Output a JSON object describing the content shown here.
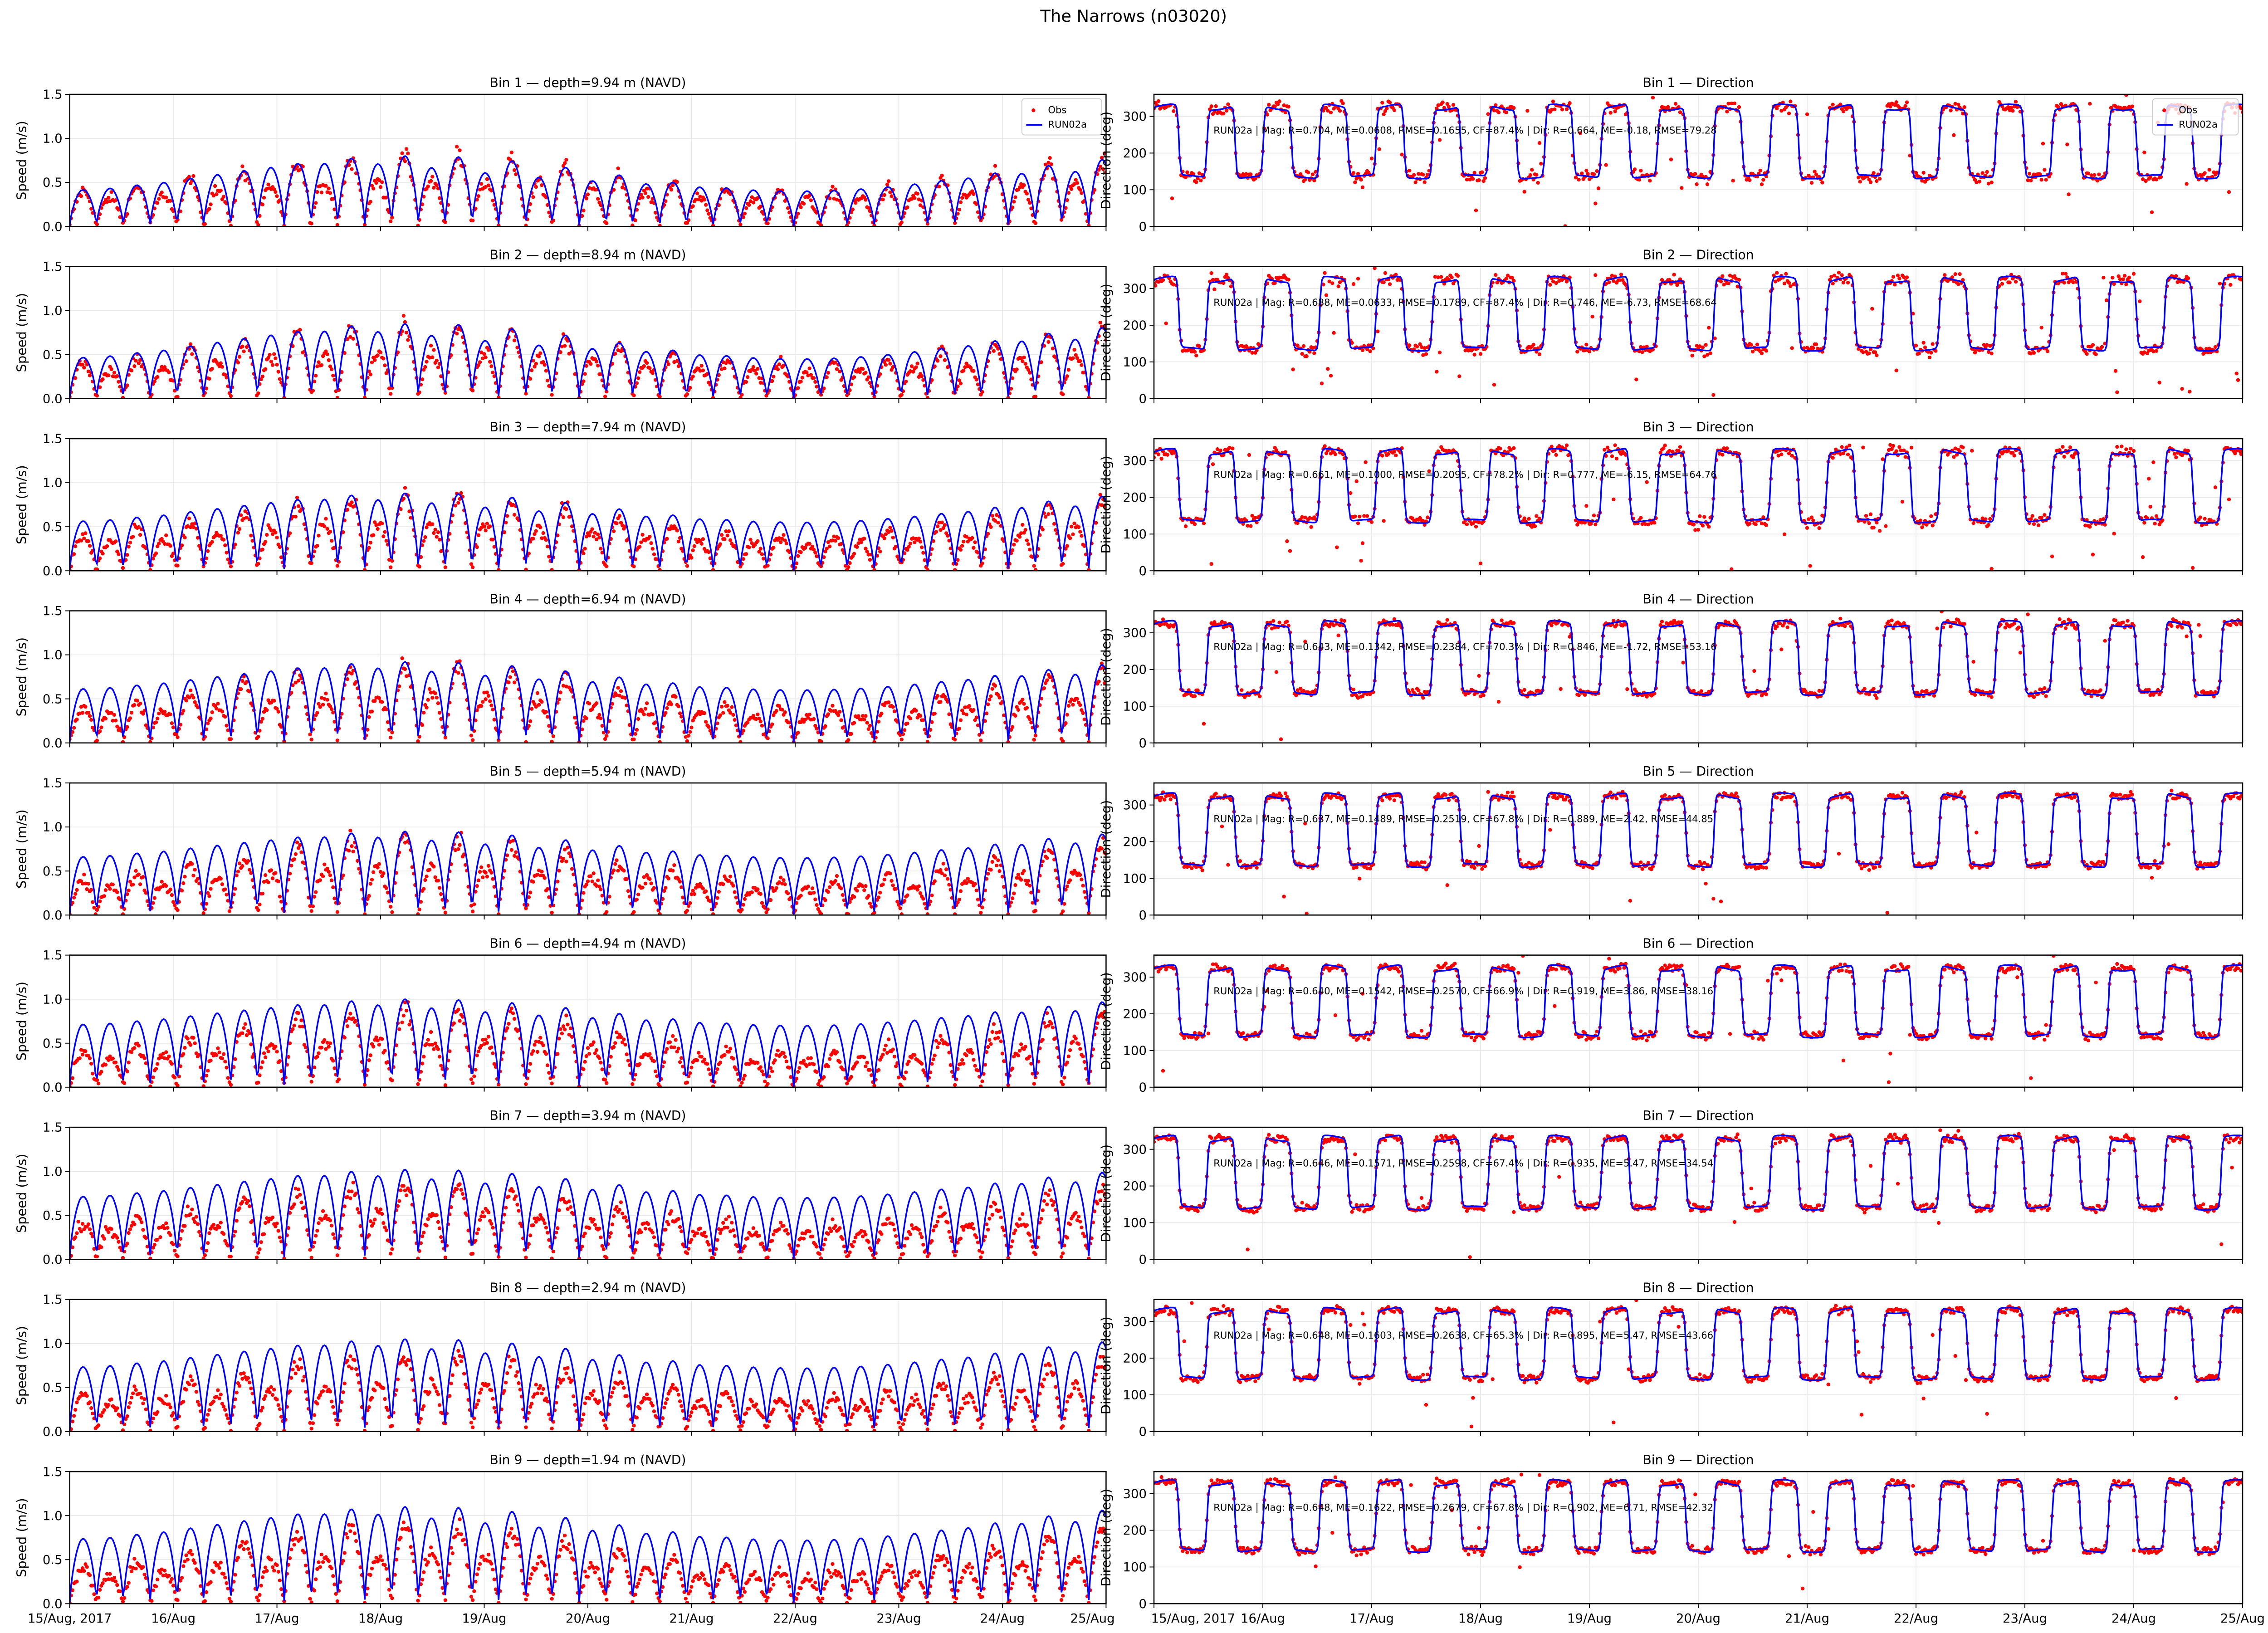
{
  "figure_title": "The Narrows (n03020)",
  "colors": {
    "obs": "#ff0000",
    "model": "#0000ff",
    "grid": "#e6e6e6"
  },
  "legend": {
    "obs": "Obs",
    "model": "RUN02a",
    "placement": "top-right (first row only)"
  },
  "x_tick_labels": [
    "15/Aug, 2017",
    "16/Aug",
    "17/Aug",
    "18/Aug",
    "19/Aug",
    "20/Aug",
    "21/Aug",
    "22/Aug",
    "23/Aug",
    "24/Aug",
    "25/Aug"
  ],
  "chart_data": [
    {
      "type": "scatter+line",
      "panel": "speed",
      "bin": 1,
      "title": "Bin 1 — depth=9.94 m (NAVD)",
      "ylabel": "Speed (m/s)",
      "ylim": [
        0,
        1.5
      ],
      "yticks": [
        "0.0",
        "0.5",
        "1.0",
        "1.5"
      ],
      "grid": true,
      "xlim_days": [
        0,
        10
      ],
      "model_peak_range": [
        0.4,
        0.8
      ],
      "obs_peak_range": [
        0.45,
        0.95
      ]
    },
    {
      "type": "scatter+line",
      "panel": "direction",
      "bin": 1,
      "title": "Bin 1 — Direction",
      "ylabel": "Direction (deg)",
      "ylim": [
        0,
        360
      ],
      "yticks": [
        "0",
        "100",
        "200",
        "300"
      ],
      "grid": true,
      "flood_deg": 325,
      "ebb_deg": 135,
      "stats": "RUN02a | Mag: R=0.704, ME=0.0608, RMSE=0.1655, CF=87.4% | Dir: R=0.664, ME=-0.18, RMSE=79.28"
    },
    {
      "type": "scatter+line",
      "panel": "speed",
      "bin": 2,
      "title": "Bin 2 — depth=8.94 m (NAVD)",
      "ylabel": "Speed (m/s)",
      "ylim": [
        0,
        1.5
      ],
      "yticks": [
        "0.0",
        "0.5",
        "1.0",
        "1.5"
      ],
      "grid": true,
      "xlim_days": [
        0,
        10
      ],
      "model_peak_range": [
        0.45,
        0.85
      ],
      "obs_peak_range": [
        0.45,
        0.98
      ]
    },
    {
      "type": "scatter+line",
      "panel": "direction",
      "bin": 2,
      "title": "Bin 2 — Direction",
      "ylabel": "Direction (deg)",
      "ylim": [
        0,
        360
      ],
      "yticks": [
        "0",
        "100",
        "200",
        "300"
      ],
      "grid": true,
      "flood_deg": 325,
      "ebb_deg": 135,
      "stats": "RUN02a | Mag: R=0.688, ME=0.0633, RMSE=0.1789, CF=87.4% | Dir: R=0.746, ME=-6.73, RMSE=68.64"
    },
    {
      "type": "scatter+line",
      "panel": "speed",
      "bin": 3,
      "title": "Bin 3 — depth=7.94 m (NAVD)",
      "ylabel": "Speed (m/s)",
      "ylim": [
        0,
        1.5
      ],
      "yticks": [
        "0.0",
        "0.5",
        "1.0",
        "1.5"
      ],
      "grid": true,
      "xlim_days": [
        0,
        10
      ],
      "model_peak_range": [
        0.55,
        0.88
      ],
      "obs_peak_range": [
        0.45,
        1.0
      ]
    },
    {
      "type": "scatter+line",
      "panel": "direction",
      "bin": 3,
      "title": "Bin 3 — Direction",
      "ylabel": "Direction (deg)",
      "ylim": [
        0,
        360
      ],
      "yticks": [
        "0",
        "100",
        "200",
        "300"
      ],
      "grid": true,
      "flood_deg": 325,
      "ebb_deg": 135,
      "stats": "RUN02a | Mag: R=0.661, ME=0.1000, RMSE=0.2095, CF=78.2% | Dir: R=0.777, ME=-6.15, RMSE=64.76"
    },
    {
      "type": "scatter+line",
      "panel": "speed",
      "bin": 4,
      "title": "Bin 4 — depth=6.94 m (NAVD)",
      "ylabel": "Speed (m/s)",
      "ylim": [
        0,
        1.5
      ],
      "yticks": [
        "0.0",
        "0.5",
        "1.0",
        "1.5"
      ],
      "grid": true,
      "xlim_days": [
        0,
        10
      ],
      "model_peak_range": [
        0.6,
        0.92
      ],
      "obs_peak_range": [
        0.45,
        1.02
      ]
    },
    {
      "type": "scatter+line",
      "panel": "direction",
      "bin": 4,
      "title": "Bin 4 — Direction",
      "ylabel": "Direction (deg)",
      "ylim": [
        0,
        360
      ],
      "yticks": [
        "0",
        "100",
        "200",
        "300"
      ],
      "grid": true,
      "flood_deg": 325,
      "ebb_deg": 135,
      "stats": "RUN02a | Mag: R=0.643, ME=0.1342, RMSE=0.2384, CF=70.3% | Dir: R=0.846, ME=-1.72, RMSE=53.16"
    },
    {
      "type": "scatter+line",
      "panel": "speed",
      "bin": 5,
      "title": "Bin 5 — depth=5.94 m (NAVD)",
      "ylabel": "Speed (m/s)",
      "ylim": [
        0,
        1.5
      ],
      "yticks": [
        "0.0",
        "0.5",
        "1.0",
        "1.5"
      ],
      "grid": true,
      "xlim_days": [
        0,
        10
      ],
      "model_peak_range": [
        0.65,
        0.95
      ],
      "obs_peak_range": [
        0.45,
        1.02
      ]
    },
    {
      "type": "scatter+line",
      "panel": "direction",
      "bin": 5,
      "title": "Bin 5 — Direction",
      "ylabel": "Direction (deg)",
      "ylim": [
        0,
        360
      ],
      "yticks": [
        "0",
        "100",
        "200",
        "300"
      ],
      "grid": true,
      "flood_deg": 325,
      "ebb_deg": 135,
      "stats": "RUN02a | Mag: R=0.637, ME=0.1489, RMSE=0.2519, CF=67.8% | Dir: R=0.889, ME=2.42, RMSE=44.85"
    },
    {
      "type": "scatter+line",
      "panel": "speed",
      "bin": 6,
      "title": "Bin 6 — depth=4.94 m (NAVD)",
      "ylabel": "Speed (m/s)",
      "ylim": [
        0,
        1.5
      ],
      "yticks": [
        "0.0",
        "0.5",
        "1.0",
        "1.5"
      ],
      "grid": true,
      "xlim_days": [
        0,
        10
      ],
      "model_peak_range": [
        0.7,
        1.0
      ],
      "obs_peak_range": [
        0.45,
        1.05
      ]
    },
    {
      "type": "scatter+line",
      "panel": "direction",
      "bin": 6,
      "title": "Bin 6 — Direction",
      "ylabel": "Direction (deg)",
      "ylim": [
        0,
        360
      ],
      "yticks": [
        "0",
        "100",
        "200",
        "300"
      ],
      "grid": true,
      "flood_deg": 325,
      "ebb_deg": 140,
      "stats": "RUN02a | Mag: R=0.640, ME=0.1542, RMSE=0.2570, CF=66.9% | Dir: R=0.919, ME=3.86, RMSE=38.16"
    },
    {
      "type": "scatter+line",
      "panel": "speed",
      "bin": 7,
      "title": "Bin 7 — depth=3.94 m (NAVD)",
      "ylabel": "Speed (m/s)",
      "ylim": [
        0,
        1.5
      ],
      "yticks": [
        "0.0",
        "0.5",
        "1.0",
        "1.5"
      ],
      "grid": true,
      "xlim_days": [
        0,
        10
      ],
      "model_peak_range": [
        0.7,
        1.02
      ],
      "obs_peak_range": [
        0.45,
        1.0
      ]
    },
    {
      "type": "scatter+line",
      "panel": "direction",
      "bin": 7,
      "title": "Bin 7 — Direction",
      "ylabel": "Direction (deg)",
      "ylim": [
        0,
        360
      ],
      "yticks": [
        "0",
        "100",
        "200",
        "300"
      ],
      "grid": true,
      "flood_deg": 330,
      "ebb_deg": 140,
      "stats": "RUN02a | Mag: R=0.646, ME=0.1571, RMSE=0.2598, CF=67.4% | Dir: R=0.935, ME=5.47, RMSE=34.54"
    },
    {
      "type": "scatter+line",
      "panel": "speed",
      "bin": 8,
      "title": "Bin 8 — depth=2.94 m (NAVD)",
      "ylabel": "Speed (m/s)",
      "ylim": [
        0,
        1.5
      ],
      "yticks": [
        "0.0",
        "0.5",
        "1.0",
        "1.5"
      ],
      "grid": true,
      "xlim_days": [
        0,
        10
      ],
      "model_peak_range": [
        0.72,
        1.05
      ],
      "obs_peak_range": [
        0.45,
        1.02
      ]
    },
    {
      "type": "scatter+line",
      "panel": "direction",
      "bin": 8,
      "title": "Bin 8 — Direction",
      "ylabel": "Direction (deg)",
      "ylim": [
        0,
        360
      ],
      "yticks": [
        "0",
        "100",
        "200",
        "300"
      ],
      "grid": true,
      "flood_deg": 330,
      "ebb_deg": 145,
      "stats": "RUN02a | Mag: R=0.648, ME=0.1603, RMSE=0.2638, CF=65.3% | Dir: R=0.895, ME=5.47, RMSE=43.66"
    },
    {
      "type": "scatter+line",
      "panel": "speed",
      "bin": 9,
      "title": "Bin 9 — depth=1.94 m (NAVD)",
      "ylabel": "Speed (m/s)",
      "ylim": [
        0,
        1.5
      ],
      "yticks": [
        "0.0",
        "0.5",
        "1.0",
        "1.5"
      ],
      "grid": true,
      "xlim_days": [
        0,
        10
      ],
      "model_peak_range": [
        0.72,
        1.1
      ],
      "obs_peak_range": [
        0.45,
        1.05
      ]
    },
    {
      "type": "scatter+line",
      "panel": "direction",
      "bin": 9,
      "title": "Bin 9 — Direction",
      "ylabel": "Direction (deg)",
      "ylim": [
        0,
        360
      ],
      "yticks": [
        "0",
        "100",
        "200",
        "300"
      ],
      "grid": true,
      "flood_deg": 330,
      "ebb_deg": 145,
      "stats": "RUN02a | Mag: R=0.648, ME=0.1622, RMSE=0.2679, CF=67.8% | Dir: R=0.902, ME=6.71, RMSE=42.32"
    }
  ]
}
